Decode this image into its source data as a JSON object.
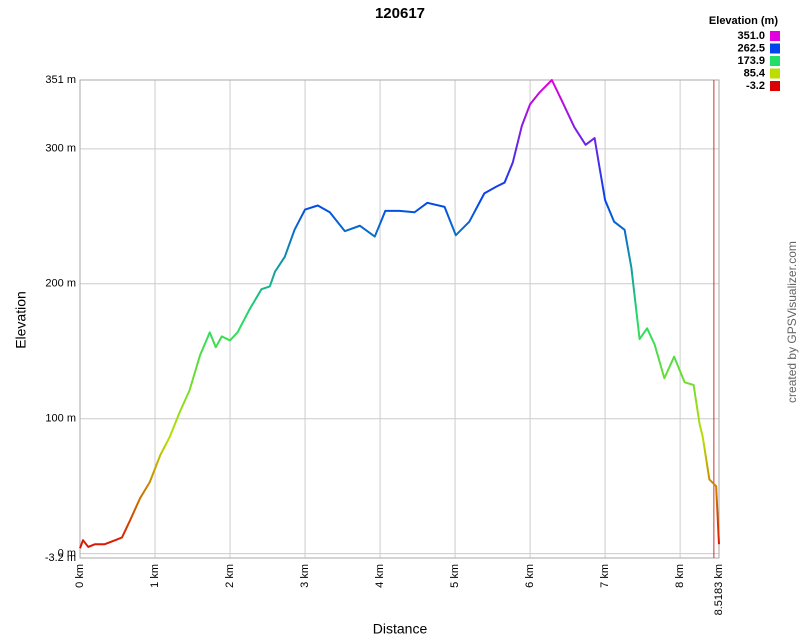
{
  "chart_data": {
    "type": "line",
    "title": "120617",
    "xlabel": "Distance",
    "ylabel": "Elevation",
    "credit": "created by GPSVisualizer.com",
    "legend_title": "Elevation (m)",
    "color_scale": [
      {
        "value": 351,
        "label": "351.0",
        "color": "#e000e0"
      },
      {
        "value": 262.5,
        "label": "262.5",
        "color": "#0044ee"
      },
      {
        "value": 173.9,
        "label": "173.9",
        "color": "#22dd66"
      },
      {
        "value": 85.4,
        "label": "85.4",
        "color": "#bbdd00"
      },
      {
        "value": -3.2,
        "label": "-3.2",
        "color": "#dd0000"
      }
    ],
    "x": [
      0,
      0.04,
      0.11,
      0.2,
      0.33,
      0.47,
      0.56,
      0.67,
      0.8,
      0.93,
      1.07,
      1.2,
      1.33,
      1.46,
      1.6,
      1.73,
      1.81,
      1.89,
      2.0,
      2.1,
      2.26,
      2.42,
      2.53,
      2.6,
      2.73,
      2.86,
      3.0,
      3.17,
      3.33,
      3.53,
      3.73,
      3.93,
      4.07,
      4.26,
      4.46,
      4.63,
      4.86,
      5.01,
      5.19,
      5.39,
      5.55,
      5.66,
      5.77,
      5.89,
      6.0,
      6.13,
      6.29,
      6.42,
      6.59,
      6.74,
      6.86,
      6.92,
      7.0,
      7.12,
      7.26,
      7.35,
      7.46,
      7.56,
      7.66,
      7.79,
      7.92,
      8.06,
      8.18,
      8.26,
      8.3,
      8.39,
      8.48,
      8.5183
    ],
    "values": [
      4,
      10,
      5,
      7,
      7,
      10,
      12,
      25,
      41,
      53,
      73,
      87,
      105,
      121,
      147,
      164,
      153,
      161,
      158,
      164,
      181,
      196,
      198,
      209,
      220,
      240,
      255,
      258,
      253,
      239,
      243,
      235,
      254,
      254,
      253,
      260,
      257,
      236,
      246,
      267,
      272,
      275,
      290,
      317,
      333,
      342,
      351,
      336,
      316,
      303,
      308,
      288,
      262,
      246,
      240,
      212,
      159,
      167,
      155,
      130,
      146,
      127,
      125,
      96,
      87,
      55,
      50,
      7
    ],
    "xlim": [
      0,
      8.5183
    ],
    "ylim": [
      -3.2,
      351
    ],
    "xticks": [
      {
        "value": 0,
        "label": "0 km"
      },
      {
        "value": 1,
        "label": "1 km"
      },
      {
        "value": 2,
        "label": "2 km"
      },
      {
        "value": 3,
        "label": "3 km"
      },
      {
        "value": 4,
        "label": "4 km"
      },
      {
        "value": 5,
        "label": "5 km"
      },
      {
        "value": 6,
        "label": "6 km"
      },
      {
        "value": 7,
        "label": "7 km"
      },
      {
        "value": 8,
        "label": "8 km"
      },
      {
        "value": 8.5183,
        "label": "8.5183 km"
      }
    ],
    "yticks": [
      {
        "value": -3.2,
        "label": "-3.2 m"
      },
      {
        "value": 0,
        "label": "0 m"
      },
      {
        "value": 100,
        "label": "100 m"
      },
      {
        "value": 200,
        "label": "200 m"
      },
      {
        "value": 300,
        "label": "300 m"
      },
      {
        "value": 351,
        "label": "351 m"
      }
    ],
    "grid": true,
    "marker_line": {
      "x": 8.45,
      "color": "#cc3333"
    }
  }
}
